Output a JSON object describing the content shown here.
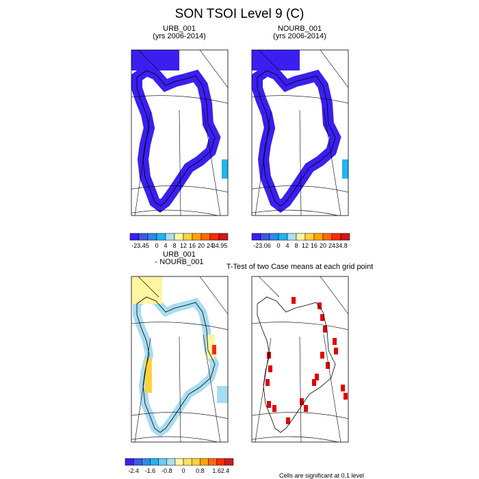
{
  "title": "SON TSOI Level 9 (C)",
  "panels": [
    {
      "title_lines": [
        "URB_001",
        "(yrs 2006-2014)"
      ]
    },
    {
      "title_lines": [
        "NOURB_001",
        "(yrs 2006-2014)"
      ]
    },
    {
      "title_lines": [
        "URB_001",
        "- NOURB_001"
      ]
    },
    {
      "title_lines": [
        "T-Test of two Case means at each grid point"
      ]
    }
  ],
  "colorbars": [
    {
      "labels": [
        "-23.45",
        "0",
        "4",
        "8",
        "12",
        "16",
        "20",
        "24",
        "34.95"
      ]
    },
    {
      "labels": [
        "-23.06",
        "0",
        "4",
        "8",
        "12",
        "16",
        "20",
        "24",
        "34.8"
      ]
    },
    {
      "labels": [
        "-2.4",
        "-1.6",
        "-0.8",
        "0",
        "0.8",
        "1.6",
        "2.4"
      ]
    }
  ],
  "footer": "Cells are significant at 0.1 level"
}
